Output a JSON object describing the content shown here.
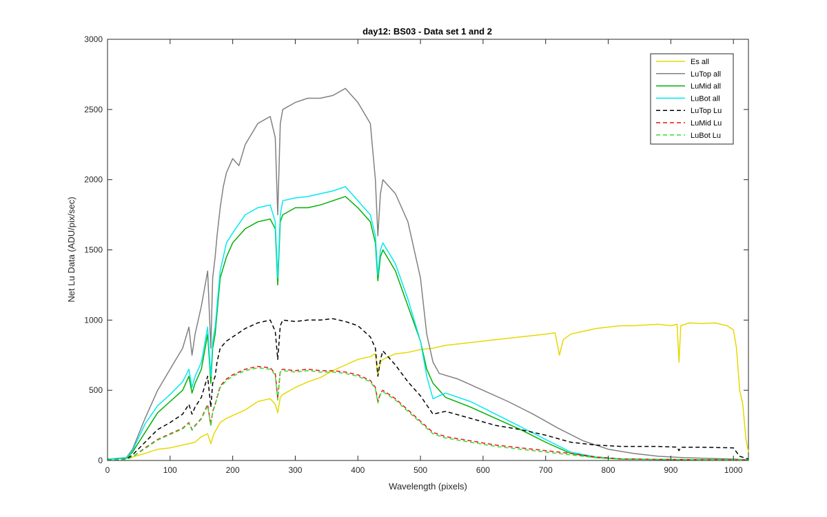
{
  "chart_data": {
    "type": "line",
    "title": "day12: BS03 - Data set 1 and 2",
    "xlabel": "Wavelength (pixels)",
    "ylabel": "Net Lu Data (ADU/pix/sec)",
    "xlim": [
      0,
      1024
    ],
    "ylim": [
      0,
      3000
    ],
    "xticks": [
      "0",
      "100",
      "200",
      "300",
      "400",
      "500",
      "600",
      "700",
      "800",
      "900",
      "1000"
    ],
    "yticks": [
      "0",
      "500",
      "1000",
      "1500",
      "2000",
      "2500",
      "3000"
    ],
    "grid": false,
    "legend_position": "top-right",
    "series": [
      {
        "name": "Es  all",
        "color": "#e6d800",
        "dash": "solid",
        "x": [
          0,
          30,
          40,
          60,
          80,
          100,
          120,
          140,
          150,
          160,
          165,
          170,
          180,
          190,
          200,
          220,
          240,
          260,
          268,
          272,
          276,
          280,
          300,
          320,
          340,
          360,
          380,
          400,
          420,
          428,
          432,
          436,
          440,
          460,
          480,
          500,
          520,
          540,
          560,
          580,
          600,
          620,
          640,
          660,
          680,
          700,
          715,
          722,
          728,
          740,
          760,
          780,
          800,
          820,
          840,
          860,
          880,
          900,
          910,
          913,
          916,
          930,
          950,
          970,
          990,
          1000,
          1005,
          1010,
          1015,
          1020,
          1024
        ],
        "y": [
          10,
          15,
          25,
          50,
          80,
          90,
          110,
          130,
          170,
          190,
          120,
          190,
          270,
          300,
          320,
          360,
          420,
          440,
          400,
          340,
          450,
          470,
          520,
          560,
          590,
          640,
          680,
          720,
          740,
          760,
          600,
          700,
          720,
          760,
          770,
          790,
          800,
          820,
          830,
          840,
          850,
          860,
          870,
          880,
          890,
          900,
          910,
          750,
          860,
          900,
          920,
          940,
          950,
          960,
          960,
          965,
          970,
          960,
          970,
          700,
          960,
          980,
          975,
          980,
          960,
          930,
          800,
          500,
          400,
          150,
          60
        ]
      },
      {
        "name": "LuTop  all",
        "color": "#808080",
        "dash": "solid",
        "x": [
          0,
          30,
          40,
          60,
          80,
          100,
          120,
          130,
          135,
          140,
          150,
          160,
          165,
          168,
          172,
          175,
          180,
          185,
          190,
          200,
          210,
          220,
          240,
          260,
          268,
          272,
          276,
          280,
          300,
          320,
          340,
          360,
          380,
          400,
          420,
          428,
          432,
          436,
          440,
          460,
          480,
          500,
          510,
          520,
          530,
          560,
          600,
          640,
          680,
          720,
          760,
          800,
          840,
          880,
          920,
          960,
          1000,
          1024
        ],
        "y": [
          10,
          20,
          80,
          300,
          500,
          650,
          800,
          950,
          750,
          900,
          1100,
          1350,
          800,
          1300,
          1450,
          1600,
          1800,
          1950,
          2050,
          2150,
          2100,
          2250,
          2400,
          2450,
          2300,
          1750,
          2400,
          2500,
          2550,
          2580,
          2580,
          2600,
          2650,
          2550,
          2400,
          2000,
          1600,
          1900,
          2000,
          1900,
          1700,
          1300,
          900,
          700,
          620,
          580,
          500,
          420,
          330,
          230,
          140,
          80,
          50,
          30,
          20,
          15,
          10,
          5
        ]
      },
      {
        "name": "LuMid  all",
        "color": "#00b000",
        "dash": "solid",
        "x": [
          0,
          30,
          40,
          60,
          80,
          100,
          120,
          130,
          135,
          140,
          150,
          160,
          165,
          168,
          172,
          175,
          180,
          190,
          200,
          220,
          240,
          260,
          268,
          272,
          276,
          280,
          300,
          320,
          340,
          360,
          380,
          400,
          420,
          428,
          432,
          436,
          440,
          460,
          480,
          500,
          510,
          520,
          540,
          580,
          620,
          660,
          700,
          740,
          780,
          820,
          880,
          940,
          1000,
          1024
        ],
        "y": [
          10,
          15,
          60,
          200,
          340,
          420,
          500,
          600,
          480,
          550,
          650,
          900,
          550,
          800,
          900,
          1050,
          1300,
          1450,
          1550,
          1650,
          1700,
          1720,
          1650,
          1250,
          1700,
          1750,
          1800,
          1800,
          1820,
          1850,
          1880,
          1800,
          1700,
          1550,
          1280,
          1450,
          1500,
          1350,
          1100,
          850,
          650,
          550,
          450,
          380,
          300,
          220,
          130,
          50,
          20,
          10,
          8,
          5,
          5,
          5
        ]
      },
      {
        "name": "LuBot  all",
        "color": "#00e8f0",
        "dash": "solid",
        "x": [
          0,
          30,
          40,
          60,
          80,
          100,
          120,
          130,
          135,
          140,
          150,
          160,
          165,
          168,
          172,
          175,
          180,
          190,
          200,
          220,
          240,
          260,
          268,
          272,
          276,
          280,
          300,
          320,
          340,
          360,
          380,
          400,
          420,
          428,
          432,
          436,
          440,
          460,
          480,
          500,
          510,
          520,
          540,
          580,
          620,
          660,
          700,
          740,
          780,
          820,
          880,
          940,
          1000,
          1024
        ],
        "y": [
          10,
          18,
          70,
          260,
          390,
          470,
          560,
          650,
          520,
          600,
          700,
          950,
          600,
          850,
          950,
          1100,
          1350,
          1550,
          1620,
          1750,
          1800,
          1820,
          1700,
          1300,
          1750,
          1850,
          1870,
          1880,
          1900,
          1920,
          1950,
          1850,
          1750,
          1600,
          1320,
          1500,
          1550,
          1400,
          1150,
          850,
          600,
          440,
          480,
          420,
          330,
          240,
          150,
          60,
          25,
          12,
          8,
          6,
          5,
          5
        ]
      },
      {
        "name": "LuTop  Lu",
        "color": "#000000",
        "dash": "dashed",
        "x": [
          0,
          30,
          40,
          60,
          80,
          100,
          120,
          130,
          135,
          140,
          150,
          160,
          165,
          168,
          172,
          175,
          180,
          190,
          200,
          220,
          240,
          260,
          268,
          272,
          276,
          280,
          300,
          320,
          340,
          360,
          380,
          400,
          420,
          428,
          432,
          436,
          440,
          460,
          480,
          500,
          520,
          540,
          580,
          620,
          660,
          700,
          740,
          780,
          820,
          880,
          910,
          913,
          916,
          940,
          1000,
          1005,
          1010,
          1024
        ],
        "y": [
          5,
          10,
          40,
          130,
          220,
          270,
          330,
          400,
          330,
          380,
          450,
          600,
          380,
          550,
          600,
          700,
          800,
          850,
          880,
          940,
          980,
          1000,
          920,
          720,
          960,
          1000,
          990,
          1000,
          1000,
          1010,
          990,
          960,
          880,
          800,
          600,
          720,
          780,
          680,
          560,
          460,
          330,
          350,
          300,
          250,
          220,
          180,
          130,
          110,
          100,
          100,
          95,
          70,
          95,
          95,
          90,
          60,
          30,
          10
        ]
      },
      {
        "name": "LuMid  Lu",
        "color": "#ee1111",
        "dash": "dashed",
        "x": [
          0,
          30,
          40,
          60,
          80,
          100,
          120,
          130,
          135,
          140,
          150,
          160,
          165,
          168,
          172,
          175,
          180,
          190,
          200,
          220,
          240,
          260,
          268,
          272,
          276,
          280,
          300,
          320,
          340,
          360,
          380,
          400,
          420,
          428,
          432,
          436,
          440,
          460,
          480,
          500,
          520,
          540,
          580,
          620,
          660,
          700,
          740,
          780,
          820,
          880,
          940,
          1000,
          1024
        ],
        "y": [
          5,
          8,
          25,
          90,
          150,
          190,
          230,
          270,
          220,
          250,
          300,
          400,
          250,
          350,
          400,
          450,
          530,
          580,
          610,
          650,
          670,
          660,
          620,
          440,
          640,
          650,
          640,
          650,
          640,
          640,
          630,
          610,
          570,
          520,
          420,
          480,
          500,
          440,
          360,
          280,
          200,
          170,
          140,
          110,
          90,
          70,
          50,
          25,
          12,
          8,
          6,
          5,
          5
        ]
      },
      {
        "name": "LuBot  Lu",
        "color": "#33dd33",
        "dash": "dashed",
        "x": [
          0,
          30,
          40,
          60,
          80,
          100,
          120,
          130,
          135,
          140,
          150,
          160,
          165,
          168,
          172,
          175,
          180,
          190,
          200,
          220,
          240,
          260,
          268,
          272,
          276,
          280,
          300,
          320,
          340,
          360,
          380,
          400,
          420,
          428,
          432,
          436,
          440,
          460,
          480,
          500,
          520,
          540,
          580,
          620,
          660,
          700,
          740,
          780,
          820,
          880,
          940,
          1000,
          1024
        ],
        "y": [
          5,
          8,
          25,
          85,
          145,
          185,
          225,
          265,
          215,
          245,
          295,
          390,
          245,
          345,
          395,
          445,
          520,
          570,
          600,
          640,
          660,
          650,
          610,
          430,
          630,
          640,
          630,
          640,
          630,
          630,
          620,
          600,
          560,
          510,
          410,
          470,
          490,
          430,
          350,
          270,
          190,
          160,
          130,
          100,
          80,
          60,
          40,
          20,
          10,
          7,
          5,
          5,
          5
        ]
      }
    ]
  }
}
